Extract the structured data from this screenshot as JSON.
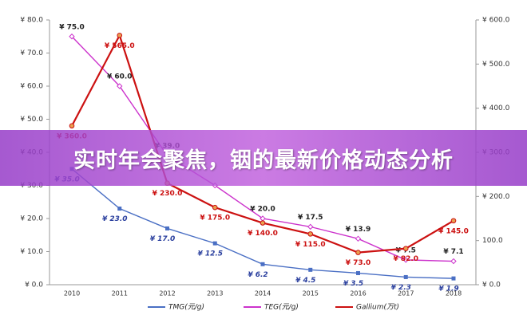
{
  "banner": {
    "title": "实时年会聚焦，铟的最新价格动态分析"
  },
  "chart_data": {
    "type": "line",
    "categories": [
      "2010",
      "2011",
      "2012",
      "2013",
      "2014",
      "2015",
      "2016",
      "2017",
      "2018"
    ],
    "ylim": [
      0,
      80
    ],
    "yticks": [
      {
        "value": 0,
        "label": "¥ 0.0"
      },
      {
        "value": 10,
        "label": "¥ 10.0"
      },
      {
        "value": 20,
        "label": "¥ 20.0"
      },
      {
        "value": 30,
        "label": "¥ 30.0"
      },
      {
        "value": 40,
        "label": "¥ 40.0"
      },
      {
        "value": 50,
        "label": "¥ 50.0"
      },
      {
        "value": 60,
        "label": "¥ 60.0"
      },
      {
        "value": 70,
        "label": "¥ 70.0"
      },
      {
        "value": 80,
        "label": "¥ 80.0"
      }
    ],
    "y2lim": [
      0,
      600
    ],
    "y2ticks": [
      {
        "value": 0,
        "label": "¥ 0.0"
      },
      {
        "value": 100,
        "label": "100.0"
      },
      {
        "value": 200,
        "label": "¥ 200.0"
      },
      {
        "value": 300,
        "label": "¥ 300.0"
      },
      {
        "value": 400,
        "label": "¥ 400.0"
      },
      {
        "value": 500,
        "label": "¥ 500.0"
      },
      {
        "value": 600,
        "label": "¥ 600.0"
      }
    ],
    "series": [
      {
        "name": "TMG(元/g)",
        "color": "#4a6fc4",
        "values": [
          35.0,
          23.0,
          17.0,
          12.5,
          6.2,
          4.5,
          3.5,
          2.3,
          1.9
        ],
        "value_labels": [
          "¥ 35.0",
          "¥ 23.0",
          "¥ 17.0",
          "¥ 12.5",
          "¥ 6.2",
          "¥ 4.5",
          "¥ 3.5",
          "¥ 2.3",
          "¥ 1.9"
        ]
      },
      {
        "name": "TEG(元/g)",
        "color": "#cc33cc",
        "values": [
          75.0,
          60.0,
          39.0,
          30,
          20.0,
          17.5,
          13.9,
          7.5,
          7.1
        ],
        "value_labels": [
          "¥ 75.0",
          "¥ 60.0",
          "¥ 39.0",
          null,
          "¥ 20.0",
          "¥ 17.5",
          "¥ 13.9",
          "¥ 7.5",
          "¥ 7.1"
        ]
      },
      {
        "name": "Gallium(万t)",
        "color": "#cc1111",
        "axis": "y2",
        "values": [
          360.0,
          565.0,
          230.0,
          175.0,
          140.0,
          115.0,
          73.0,
          82.0,
          145.0
        ],
        "value_labels": [
          "¥ 360.0",
          "¥ 565.0",
          "¥ 230.0",
          "¥ 175.0",
          "¥ 140.0",
          "¥ 115.0",
          "¥ 73.0",
          "¥ 82.0",
          "¥ 145.0"
        ]
      }
    ]
  }
}
